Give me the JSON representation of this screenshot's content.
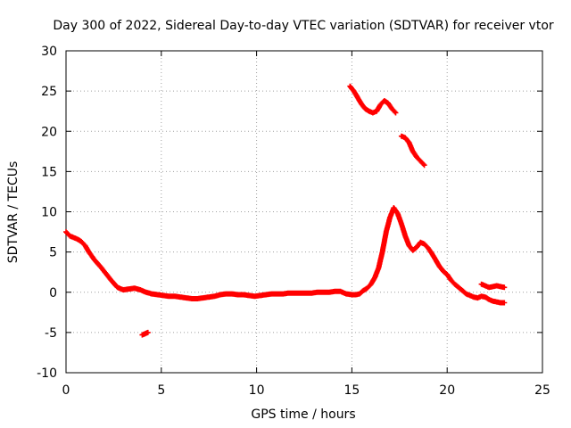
{
  "chart_data": {
    "type": "scatter",
    "title": "Day 300 of 2022, Sidereal Day-to-day VTEC variation (SDTVAR) for receiver vtor",
    "xlabel": "GPS time / hours",
    "ylabel": "SDTVAR / TECUs",
    "xlim": [
      0,
      25
    ],
    "ylim": [
      -10,
      30
    ],
    "xticks": [
      0,
      5,
      10,
      15,
      20,
      25
    ],
    "yticks": [
      -10,
      -5,
      0,
      5,
      10,
      15,
      20,
      25,
      30
    ],
    "xtick_labels": [
      "0",
      "5",
      "10",
      "15",
      "20",
      "25"
    ],
    "ytick_labels": [
      "-10",
      "-5",
      "0",
      "5",
      "10",
      "15",
      "20",
      "25",
      "30"
    ],
    "grid": true,
    "marker": "+",
    "series": [
      {
        "name": "SDTVAR",
        "color": "#ff0000",
        "segments": [
          {
            "name": "main-trace",
            "x": [
              0.0,
              0.2,
              0.4,
              0.6,
              0.8,
              1.0,
              1.2,
              1.5,
              1.8,
              2.1,
              2.4,
              2.7,
              3.0,
              3.3,
              3.6,
              3.9,
              4.2,
              4.5,
              4.8,
              5.1,
              5.4,
              5.7,
              6.0,
              6.3,
              6.6,
              6.9,
              7.2,
              7.5,
              7.8,
              8.1,
              8.4,
              8.7,
              9.0,
              9.3,
              9.6,
              9.9,
              10.2,
              10.5,
              10.8,
              11.1,
              11.4,
              11.7,
              12.0,
              12.3,
              12.6,
              12.9,
              13.2,
              13.5,
              13.8,
              14.1,
              14.4,
              14.7,
              15.0,
              15.2,
              15.4,
              15.6,
              15.8,
              16.0,
              16.2,
              16.4,
              16.6,
              16.8,
              17.0,
              17.2,
              17.4,
              17.6,
              17.8,
              18.0,
              18.2,
              18.4,
              18.6,
              18.8,
              19.0,
              19.2,
              19.4,
              19.6,
              19.8,
              20.0,
              20.2,
              20.4,
              20.6,
              20.8,
              21.0,
              21.2,
              21.4,
              21.6,
              21.8,
              22.0,
              22.2,
              22.4,
              22.6,
              22.8,
              23.0
            ],
            "y": [
              7.5,
              7.0,
              6.8,
              6.6,
              6.3,
              5.8,
              5.0,
              4.0,
              3.2,
              2.3,
              1.4,
              0.6,
              0.3,
              0.4,
              0.5,
              0.3,
              0.0,
              -0.2,
              -0.3,
              -0.4,
              -0.5,
              -0.5,
              -0.6,
              -0.7,
              -0.8,
              -0.8,
              -0.7,
              -0.6,
              -0.5,
              -0.3,
              -0.2,
              -0.2,
              -0.3,
              -0.3,
              -0.4,
              -0.5,
              -0.4,
              -0.3,
              -0.2,
              -0.2,
              -0.2,
              -0.1,
              -0.1,
              -0.1,
              -0.1,
              -0.1,
              0.0,
              0.0,
              0.0,
              0.1,
              0.1,
              -0.2,
              -0.3,
              -0.3,
              -0.2,
              0.2,
              0.5,
              1.0,
              1.8,
              3.0,
              5.0,
              7.5,
              9.3,
              10.5,
              9.8,
              8.5,
              7.0,
              5.8,
              5.2,
              5.6,
              6.2,
              6.0,
              5.5,
              4.8,
              4.0,
              3.2,
              2.6,
              2.2,
              1.5,
              1.0,
              0.6,
              0.2,
              -0.2,
              -0.4,
              -0.6,
              -0.7,
              -0.5,
              -0.6,
              -0.9,
              -1.1,
              -1.2,
              -1.3,
              -1.3
            ]
          },
          {
            "name": "upper-trace",
            "x": [
              21.8,
              22.0,
              22.2,
              22.4,
              22.6,
              22.8,
              23.0
            ],
            "y": [
              1.0,
              0.8,
              0.6,
              0.7,
              0.8,
              0.7,
              0.6
            ]
          },
          {
            "name": "isolated-point",
            "x": [
              4.0,
              4.1,
              4.2,
              4.3
            ],
            "y": [
              -5.3,
              -5.2,
              -5.1,
              -5.0
            ]
          },
          {
            "name": "arc-trace",
            "x": [
              14.9,
              15.1,
              15.3,
              15.5,
              15.7,
              15.9,
              16.1,
              16.3,
              16.5,
              16.7,
              16.9,
              17.1,
              17.3
            ],
            "y": [
              25.6,
              25.0,
              24.2,
              23.4,
              22.8,
              22.5,
              22.3,
              22.5,
              23.3,
              23.8,
              23.5,
              22.8,
              22.3
            ]
          },
          {
            "name": "descending-trace",
            "x": [
              17.6,
              17.8,
              18.0,
              18.2,
              18.4,
              18.6,
              18.8
            ],
            "y": [
              19.4,
              19.2,
              18.6,
              17.5,
              16.8,
              16.3,
              15.8
            ]
          }
        ]
      }
    ]
  }
}
